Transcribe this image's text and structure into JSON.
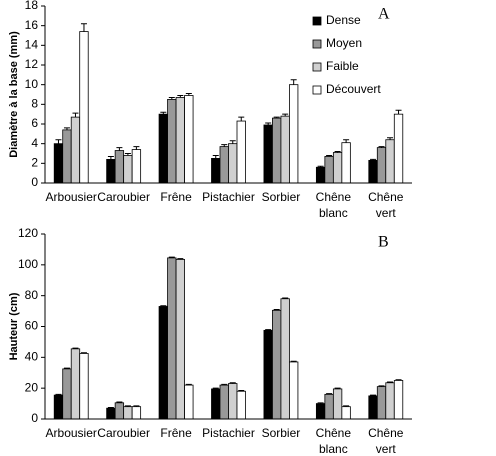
{
  "chart_data": [
    {
      "type": "bar",
      "annotation": "A",
      "ylabel": "Diamètre à la base (mm)",
      "categories": [
        "Arbousier",
        "Caroubier",
        "Frêne",
        "Pistachier",
        "Sorbier",
        "Chêne blanc",
        "Chêne vert"
      ],
      "ylim": [
        0,
        18
      ],
      "yticks": [
        0,
        2,
        4,
        6,
        8,
        10,
        12,
        14,
        16,
        18
      ],
      "grid": false,
      "legend": "upper right",
      "series": [
        {
          "name": "Dense",
          "color": "#000000",
          "values": [
            4.0,
            2.4,
            7.0,
            2.5,
            5.9,
            1.6,
            2.3
          ],
          "errors": [
            0.4,
            0.3,
            0.2,
            0.3,
            0.2,
            0.1,
            0.1
          ]
        },
        {
          "name": "Moyen",
          "color": "#999999",
          "values": [
            5.4,
            3.3,
            8.5,
            3.7,
            6.6,
            2.7,
            3.6
          ],
          "errors": [
            0.2,
            0.3,
            0.2,
            0.2,
            0.1,
            0.1,
            0.1
          ]
        },
        {
          "name": "Faible",
          "color": "#d0d0d0",
          "values": [
            6.7,
            2.8,
            8.7,
            4.0,
            6.8,
            3.1,
            4.4
          ],
          "errors": [
            0.4,
            0.2,
            0.2,
            0.3,
            0.2,
            0.1,
            0.2
          ]
        },
        {
          "name": "Découvert",
          "color": "#ffffff",
          "values": [
            15.4,
            3.4,
            8.9,
            6.3,
            10.0,
            4.1,
            7.0
          ],
          "errors": [
            0.8,
            0.3,
            0.2,
            0.4,
            0.5,
            0.3,
            0.4
          ]
        }
      ]
    },
    {
      "type": "bar",
      "annotation": "B",
      "ylabel": "Hauteur (cm)",
      "categories": [
        "Arbousier",
        "Caroubier",
        "Frêne",
        "Pistachier",
        "Sorbier",
        "Chêne blanc",
        "Chêne vert"
      ],
      "ylim": [
        0,
        120
      ],
      "yticks": [
        0,
        20,
        40,
        60,
        80,
        100,
        120
      ],
      "grid": false,
      "series": [
        {
          "color": "#000000",
          "values": [
            15.5,
            7,
            73,
            19.5,
            57.5,
            10,
            15
          ],
          "errors": [
            0.5,
            0.5,
            0.5,
            0.5,
            0.5,
            0.5,
            0.5
          ]
        },
        {
          "color": "#999999",
          "values": [
            32.5,
            10.5,
            104.5,
            22,
            70.5,
            16,
            21
          ],
          "errors": [
            0.5,
            0.5,
            0.5,
            0.5,
            0.5,
            0.5,
            0.5
          ]
        },
        {
          "color": "#d0d0d0",
          "values": [
            45.5,
            8,
            103.5,
            23,
            78,
            19.5,
            23.5
          ],
          "errors": [
            0.5,
            0.5,
            0.5,
            0.5,
            0.5,
            0.5,
            0.5
          ]
        },
        {
          "color": "#ffffff",
          "values": [
            42.5,
            8,
            22,
            18,
            37,
            8,
            25
          ],
          "errors": [
            0.5,
            0.5,
            0.5,
            0.5,
            0.5,
            0.5,
            0.5
          ]
        }
      ]
    }
  ]
}
